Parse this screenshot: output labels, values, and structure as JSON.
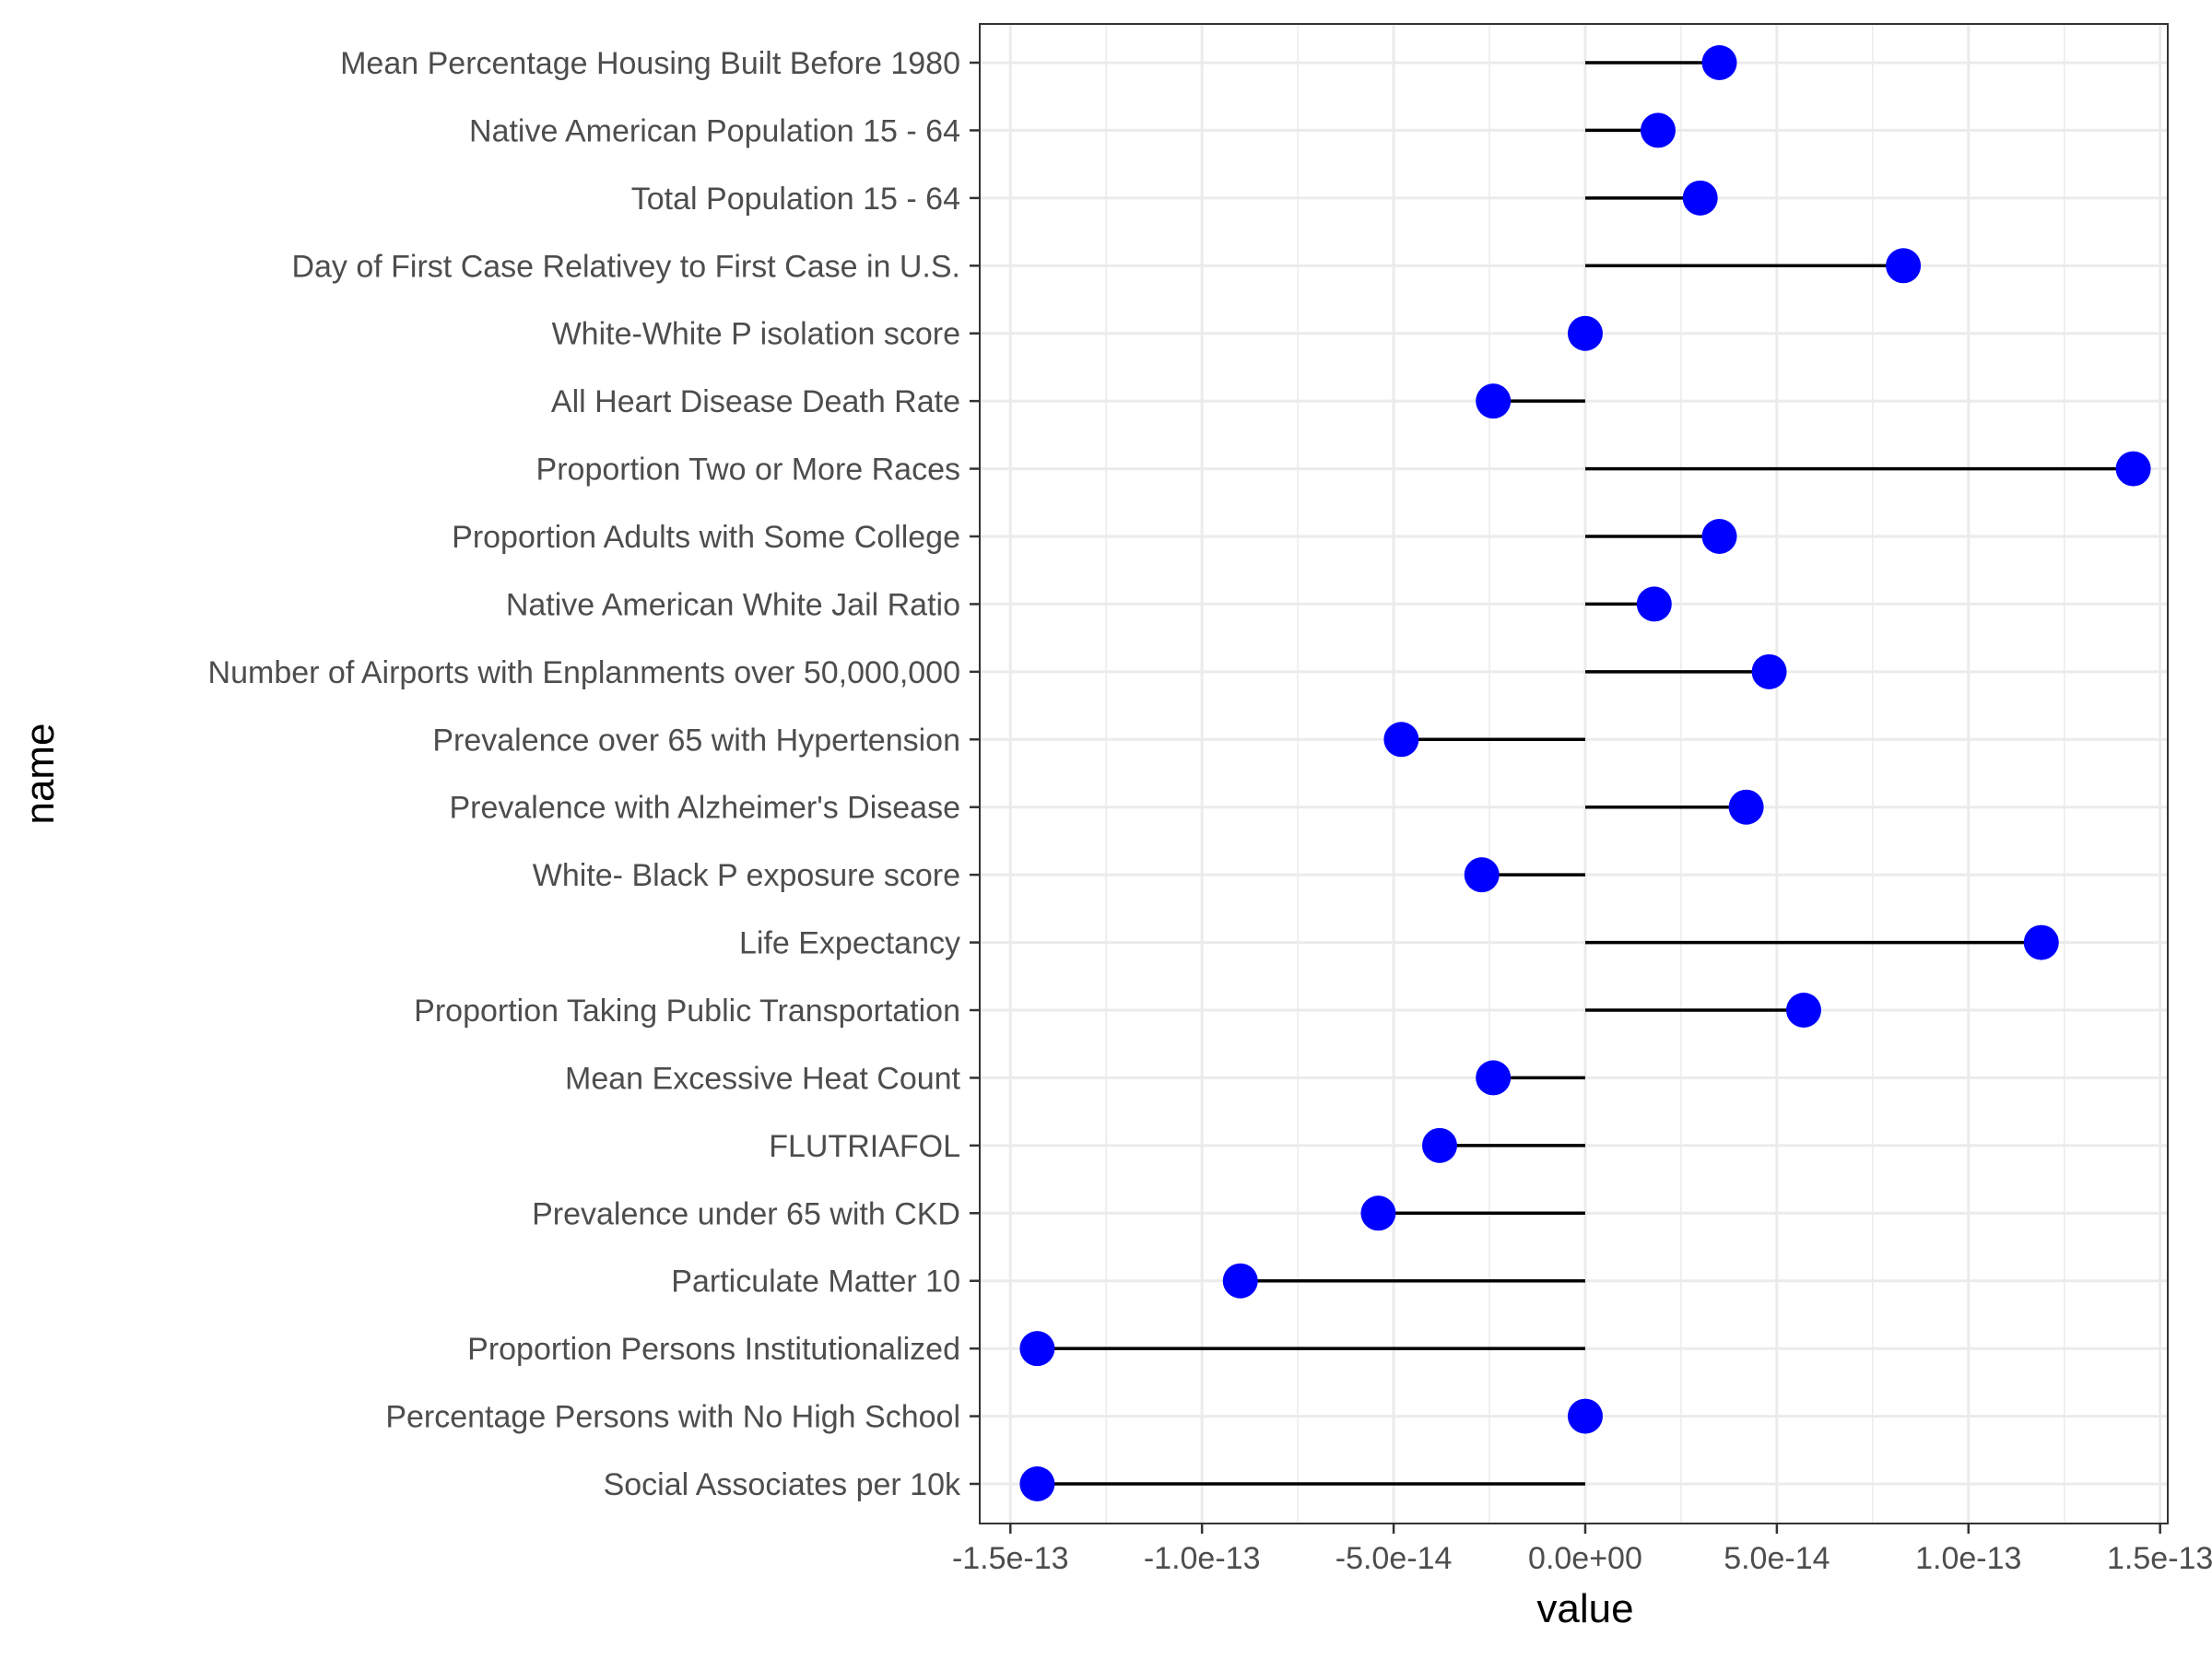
{
  "chart_data": {
    "type": "lollipop",
    "title": "",
    "xlabel": "value",
    "ylabel": "name",
    "xlim": [
      -1.58e-13,
      1.52e-13
    ],
    "grid": true,
    "x_ticks": [
      {
        "value": -1.5e-13,
        "label": "-1.5e-13"
      },
      {
        "value": -1e-13,
        "label": "-1.0e-13"
      },
      {
        "value": -5e-14,
        "label": "-5.0e-14"
      },
      {
        "value": 0,
        "label": "0.0e+00"
      },
      {
        "value": 5e-14,
        "label": "5.0e-14"
      },
      {
        "value": 1e-13,
        "label": "1.0e-13"
      },
      {
        "value": 1.5e-13,
        "label": "1.5e-13"
      }
    ],
    "categories": [
      "Mean Percentage Housing Built Before 1980",
      "Native American Population 15 - 64",
      "Total Population 15 - 64",
      "Day of First Case Relativey to First Case in U.S.",
      "White-White P isolation score",
      "All Heart Disease Death Rate",
      "Proportion Two or More Races",
      "Proportion Adults with Some College",
      "Native American White Jail Ratio",
      "Number of Airports with Enplanments over 50,000,000",
      "Prevalence over 65 with Hypertension",
      "Prevalence with Alzheimer's Disease",
      "White- Black P exposure score",
      "Life Expectancy",
      "Proportion Taking Public Transportation",
      "Mean Excessive Heat Count",
      "FLUTRIAFOL",
      "Prevalence under 65 with CKD",
      "Particulate Matter 10",
      "Proportion Persons Institutionalized",
      "Percentage Persons with No High School",
      "Social Associates per 10k"
    ],
    "values": [
      3.5e-14,
      1.9e-14,
      3e-14,
      8.3e-14,
      0,
      -2.4e-14,
      1.43e-13,
      3.5e-14,
      1.8e-14,
      4.8e-14,
      -4.8e-14,
      4.2e-14,
      -2.7e-14,
      1.19e-13,
      5.7e-14,
      -2.4e-14,
      -3.8e-14,
      -5.4e-14,
      -9e-14,
      -1.43e-13,
      0,
      -1.43e-13
    ],
    "colors": {
      "point": "#0000ff",
      "segment": "#000000",
      "grid": "#ebebeb",
      "panel_border": "#333333"
    }
  }
}
